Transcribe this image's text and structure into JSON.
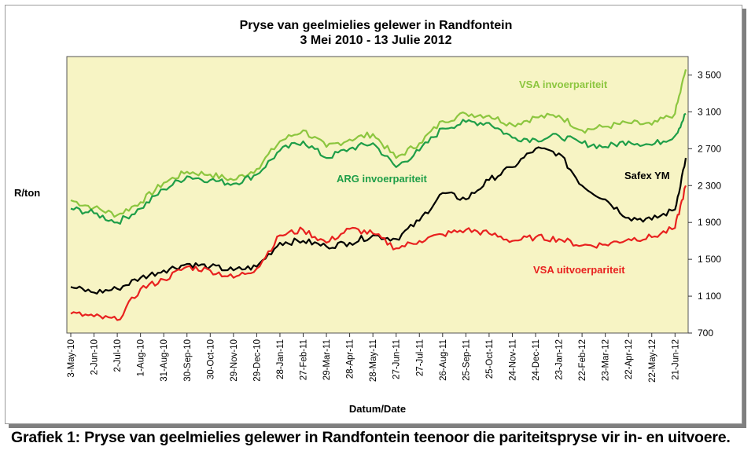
{
  "caption": "Grafiek 1: Pryse van geelmielies gelewer in Randfontein teenoor die pariteitspryse vir in- en uitvoere.",
  "chart_data": {
    "type": "line",
    "title": "Pryse van geelmielies gelewer in Randfontein",
    "subtitle": "3 Mei 2010 - 13 Julie 2012",
    "xlabel": "Datum/Date",
    "ylabel": "R/ton",
    "ylim": [
      700,
      3700
    ],
    "yticks": [
      700,
      1100,
      1500,
      1900,
      2300,
      2700,
      3100,
      3500
    ],
    "ytick_labels": [
      "700",
      "1 100",
      "1 500",
      "1 900",
      "2 300",
      "2 700",
      "3 100",
      "3 500"
    ],
    "y_axis_side": "right",
    "grid": false,
    "background": "#f7f4c4",
    "xticks": [
      "3-May-10",
      "2-Jun-10",
      "2-Jul-10",
      "1-Aug-10",
      "31-Aug-10",
      "30-Sep-10",
      "30-Oct-10",
      "29-Nov-10",
      "29-Dec-10",
      "28-Jan-11",
      "27-Feb-11",
      "29-Mar-11",
      "28-Apr-11",
      "28-May-11",
      "27-Jun-11",
      "27-Jul-11",
      "26-Aug-11",
      "25-Sep-11",
      "25-Oct-11",
      "24-Nov-11",
      "24-Dec-11",
      "23-Jan-12",
      "22-Feb-12",
      "23-Mar-12",
      "22-Apr-12",
      "22-May-12",
      "21-Jun-12"
    ],
    "x": [
      "3-May-10",
      "2-Jun-10",
      "2-Jul-10",
      "1-Aug-10",
      "31-Aug-10",
      "30-Sep-10",
      "30-Oct-10",
      "29-Nov-10",
      "29-Dec-10",
      "28-Jan-11",
      "27-Feb-11",
      "29-Mar-11",
      "28-Apr-11",
      "28-May-11",
      "27-Jun-11",
      "27-Jul-11",
      "26-Aug-11",
      "25-Sep-11",
      "25-Oct-11",
      "24-Nov-11",
      "24-Dec-11",
      "23-Jan-12",
      "22-Feb-12",
      "23-Mar-12",
      "22-Apr-12",
      "22-May-12",
      "21-Jun-12",
      "13-Jul-12"
    ],
    "series": [
      {
        "name": "VSA invoerpariteit",
        "color": "#8cc63f",
        "values": [
          2140,
          2060,
          1980,
          2120,
          2330,
          2450,
          2420,
          2360,
          2480,
          2780,
          2900,
          2720,
          2800,
          2860,
          2600,
          2760,
          3000,
          3080,
          3060,
          2960,
          3040,
          3060,
          2900,
          2940,
          2980,
          2960,
          3080,
          3560
        ]
      },
      {
        "name": "ARG invoerpariteit",
        "color": "#1e9e48",
        "values": [
          2050,
          2000,
          1900,
          2050,
          2260,
          2400,
          2360,
          2320,
          2420,
          2680,
          2780,
          2600,
          2700,
          2760,
          2500,
          2680,
          2920,
          2990,
          2980,
          2820,
          2800,
          2840,
          2760,
          2720,
          2780,
          2740,
          2840,
          3080
        ]
      },
      {
        "name": "Safex YM",
        "color": "#000000",
        "values": [
          1200,
          1140,
          1180,
          1300,
          1380,
          1450,
          1420,
          1380,
          1420,
          1680,
          1700,
          1640,
          1680,
          1760,
          1720,
          1920,
          2220,
          2150,
          2360,
          2500,
          2700,
          2650,
          2300,
          2150,
          1950,
          1930,
          2040,
          2600
        ]
      },
      {
        "name": "VSA uitvoerpariteit",
        "color": "#e8211f",
        "values": [
          910,
          880,
          840,
          1180,
          1280,
          1420,
          1380,
          1300,
          1400,
          1760,
          1820,
          1680,
          1830,
          1780,
          1620,
          1700,
          1770,
          1820,
          1780,
          1700,
          1740,
          1720,
          1650,
          1660,
          1720,
          1740,
          1840,
          2300
        ]
      }
    ],
    "series_labels": [
      "VSA invoerpariteit",
      "ARG invoerpariteit",
      "Safex YM",
      "VSA uitvoerpariteit"
    ],
    "legend": "inline labels"
  }
}
